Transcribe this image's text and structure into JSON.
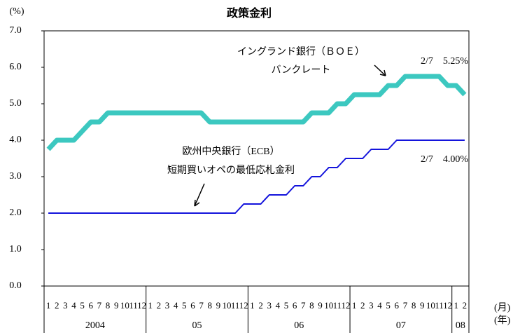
{
  "chart_data": {
    "type": "line",
    "title": "政策金利",
    "y_unit": "(%)",
    "x_unit_month": "(月)",
    "x_unit_year": "(年)",
    "categories": [
      "1",
      "2",
      "3",
      "4",
      "5",
      "6",
      "7",
      "8",
      "9",
      "10",
      "11",
      "12",
      "1",
      "2",
      "3",
      "4",
      "5",
      "6",
      "7",
      "8",
      "9",
      "10",
      "11",
      "12",
      "1",
      "2",
      "3",
      "4",
      "5",
      "6",
      "7",
      "8",
      "9",
      "10",
      "11",
      "12",
      "1",
      "2",
      "3",
      "4",
      "5",
      "6",
      "7",
      "8",
      "9",
      "10",
      "11",
      "12",
      "1",
      "2"
    ],
    "years": [
      "2004",
      "05",
      "06",
      "07",
      "08"
    ],
    "series": [
      {
        "color": "#3cc8c0",
        "values": [
          3.75,
          4.0,
          4.0,
          4.0,
          4.25,
          4.5,
          4.5,
          4.75,
          4.75,
          4.75,
          4.75,
          4.75,
          4.75,
          4.75,
          4.75,
          4.75,
          4.75,
          4.75,
          4.75,
          4.5,
          4.5,
          4.5,
          4.5,
          4.5,
          4.5,
          4.5,
          4.5,
          4.5,
          4.5,
          4.5,
          4.5,
          4.75,
          4.75,
          4.75,
          5.0,
          5.0,
          5.25,
          5.25,
          5.25,
          5.25,
          5.5,
          5.5,
          5.75,
          5.75,
          5.75,
          5.75,
          5.75,
          5.5,
          5.5,
          5.25
        ]
      },
      {
        "color": "#1414dc",
        "values": [
          2.0,
          2.0,
          2.0,
          2.0,
          2.0,
          2.0,
          2.0,
          2.0,
          2.0,
          2.0,
          2.0,
          2.0,
          2.0,
          2.0,
          2.0,
          2.0,
          2.0,
          2.0,
          2.0,
          2.0,
          2.0,
          2.0,
          2.0,
          2.25,
          2.25,
          2.25,
          2.5,
          2.5,
          2.5,
          2.75,
          2.75,
          3.0,
          3.0,
          3.25,
          3.25,
          3.5,
          3.5,
          3.5,
          3.75,
          3.75,
          3.75,
          4.0,
          4.0,
          4.0,
          4.0,
          4.0,
          4.0,
          4.0,
          4.0,
          4.0
        ]
      }
    ],
    "annotations": [
      {
        "lines": [
          "イングランド銀行（ＢＯＥ）",
          "バンクレート"
        ]
      },
      {
        "lines": [
          "2/7　5.25%"
        ]
      },
      {
        "lines": [
          "欧州中央銀行（ECB）",
          "短期買いオペの最低応札金利"
        ]
      },
      {
        "lines": [
          "2/7　4.00%"
        ]
      }
    ],
    "ylim": [
      0,
      7
    ],
    "yticks": [
      {
        "value": 0,
        "label": "0.0"
      },
      {
        "value": 1,
        "label": "1.0"
      },
      {
        "value": 2,
        "label": "2.0"
      },
      {
        "value": 3,
        "label": "3.0"
      },
      {
        "value": 4,
        "label": "4.0"
      },
      {
        "value": 5,
        "label": "5.0"
      },
      {
        "value": 6,
        "label": "6.0"
      },
      {
        "value": 7,
        "label": "7.0"
      }
    ]
  }
}
